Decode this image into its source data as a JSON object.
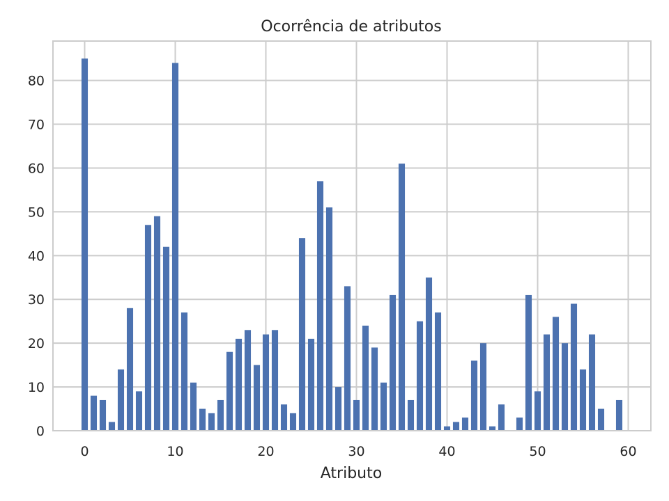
{
  "chart_data": {
    "type": "bar",
    "title": "Ocorrência de atributos",
    "xlabel": "Atributo",
    "ylabel": "",
    "x": [
      0,
      1,
      2,
      3,
      4,
      5,
      6,
      7,
      8,
      9,
      10,
      11,
      12,
      13,
      14,
      15,
      16,
      17,
      18,
      19,
      20,
      21,
      22,
      23,
      24,
      25,
      26,
      27,
      28,
      29,
      30,
      31,
      32,
      33,
      34,
      35,
      36,
      37,
      38,
      39,
      40,
      41,
      42,
      43,
      44,
      45,
      46,
      47,
      48,
      49,
      50,
      51,
      52,
      53,
      54,
      55,
      56,
      57,
      58,
      59
    ],
    "values": [
      85,
      8,
      7,
      2,
      14,
      28,
      9,
      47,
      49,
      42,
      84,
      27,
      11,
      5,
      4,
      7,
      18,
      21,
      23,
      15,
      22,
      23,
      6,
      4,
      44,
      21,
      57,
      51,
      10,
      33,
      7,
      24,
      19,
      11,
      31,
      61,
      7,
      25,
      35,
      27,
      1,
      2,
      3,
      16,
      20,
      1,
      6,
      0,
      3,
      31,
      9,
      22,
      26,
      20,
      29,
      14,
      22,
      5,
      0,
      7
    ],
    "xlim": [
      -3.5,
      62.5
    ],
    "ylim": [
      0,
      89
    ],
    "xticks": [
      0,
      10,
      20,
      30,
      40,
      50,
      60
    ],
    "yticks": [
      0,
      10,
      20,
      30,
      40,
      50,
      60,
      70,
      80
    ],
    "grid": true,
    "colors": {
      "bar": "#4c72b0",
      "grid": "#cccccc",
      "text": "#262626",
      "background": "#ffffff"
    }
  }
}
